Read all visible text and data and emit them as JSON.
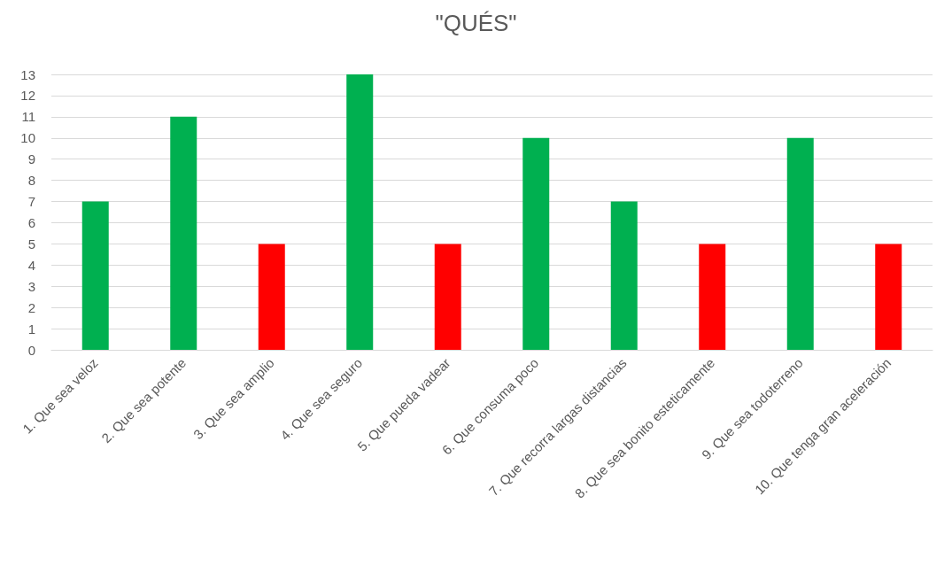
{
  "chart_data": {
    "type": "bar",
    "title": "\"QUÉS\"",
    "categories": [
      "1. Que sea veloz",
      "2. Que sea potente",
      "3. Que sea amplio",
      "4. Que sea seguro",
      "5. Que pueda vadear",
      "6. Que consuma poco",
      "7. Que recorra largas distancias",
      "8. Que sea bonito esteticamente",
      "9. Que sea todoterreno",
      "10. Que tenga gran aceleración"
    ],
    "values": [
      7,
      11,
      5,
      13,
      5,
      10,
      7,
      5,
      10,
      5
    ],
    "colors": [
      "#00b050",
      "#00b050",
      "#ff0000",
      "#00b050",
      "#ff0000",
      "#00b050",
      "#00b050",
      "#ff0000",
      "#00b050",
      "#ff0000"
    ],
    "ylim": [
      0,
      13
    ],
    "yticks": [
      0,
      1,
      2,
      3,
      4,
      5,
      6,
      7,
      8,
      9,
      10,
      11,
      12,
      13
    ],
    "grid": true
  }
}
